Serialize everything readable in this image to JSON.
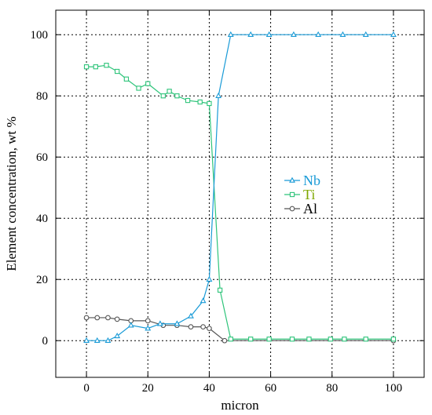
{
  "chart_data": {
    "type": "line",
    "xlabel": "micron",
    "ylabel": "Element concentration, wt %",
    "xlim": [
      -10,
      110
    ],
    "ylim": [
      -12,
      108
    ],
    "x_ticks": [
      0,
      20,
      40,
      60,
      80,
      100
    ],
    "y_ticks": [
      0,
      20,
      40,
      60,
      80,
      100
    ],
    "grid": true,
    "legend_position": "center-right",
    "series": [
      {
        "name": "Nb",
        "color": "#1a9bd7",
        "marker": "triangle",
        "label_color": "#1a9bd7",
        "x": [
          0,
          3.5,
          7,
          10,
          14.5,
          20,
          24,
          29.5,
          34,
          38,
          40,
          43,
          47,
          53.5,
          59.5,
          67.5,
          75.5,
          83.5,
          91,
          100
        ],
        "y": [
          0,
          0,
          0,
          1.5,
          5,
          4,
          5.5,
          5.5,
          8,
          13,
          20,
          80,
          100,
          100,
          100,
          100,
          100,
          100,
          100,
          100
        ]
      },
      {
        "name": "Ti",
        "color": "#2ec47a",
        "marker": "square",
        "label_color": "#7fa800",
        "x": [
          0,
          3,
          6.5,
          10,
          13,
          17,
          20,
          25,
          27,
          29.5,
          33,
          37,
          40,
          43.5,
          47,
          53.5,
          59.5,
          67,
          72.5,
          79.5,
          84,
          91,
          100
        ],
        "y": [
          89.5,
          89.5,
          90,
          88,
          85.5,
          82.5,
          84,
          80,
          81.5,
          80,
          78.5,
          78,
          77.5,
          16.5,
          0.5,
          0.5,
          0.5,
          0.5,
          0.5,
          0.5,
          0.5,
          0.5,
          0.5
        ]
      },
      {
        "name": "Al",
        "color": "#555555",
        "marker": "circle",
        "label_color": "#000000",
        "x": [
          0,
          3.5,
          7,
          10,
          14.5,
          20,
          25,
          29.5,
          34,
          38,
          40,
          45,
          100
        ],
        "y": [
          7.5,
          7.5,
          7.5,
          7,
          6.5,
          6.5,
          5,
          5,
          4.5,
          4.5,
          4,
          0,
          0
        ]
      }
    ]
  }
}
